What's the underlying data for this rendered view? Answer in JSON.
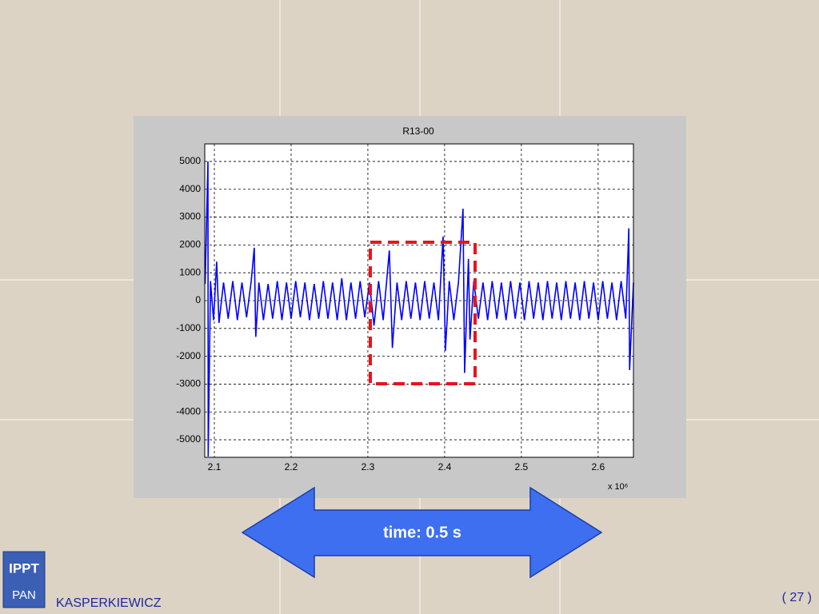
{
  "chart_data": {
    "type": "line",
    "title": "R13-00",
    "x_multiplier": "x 10⁶",
    "xlim": [
      2.0875,
      2.646
    ],
    "ylim": [
      -5630,
      5630
    ],
    "xticks": [
      2.1,
      2.2,
      2.3,
      2.4,
      2.5,
      2.6
    ],
    "yticks": [
      -5000,
      -4000,
      -3000,
      -2000,
      -1000,
      0,
      1000,
      2000,
      3000,
      4000,
      5000
    ],
    "grid": true,
    "series": [
      {
        "color": "#0000ff",
        "x": [
          2.088,
          2.0917,
          2.092,
          2.095,
          2.099,
          2.103,
          2.106,
          2.112,
          2.118,
          2.124,
          2.13,
          2.136,
          2.142,
          2.148,
          2.152,
          2.154,
          2.158,
          2.164,
          2.17,
          2.176,
          2.182,
          2.188,
          2.194,
          2.2,
          2.206,
          2.212,
          2.218,
          2.224,
          2.23,
          2.236,
          2.242,
          2.248,
          2.254,
          2.26,
          2.266,
          2.272,
          2.278,
          2.284,
          2.29,
          2.296,
          2.302,
          2.308,
          2.314,
          2.32,
          2.328,
          2.332,
          2.338,
          2.344,
          2.35,
          2.356,
          2.362,
          2.368,
          2.374,
          2.38,
          2.386,
          2.392,
          2.398,
          2.401,
          2.406,
          2.412,
          2.418,
          2.424,
          2.426,
          2.431,
          2.433,
          2.438,
          2.444,
          2.45,
          2.456,
          2.462,
          2.468,
          2.474,
          2.48,
          2.486,
          2.492,
          2.498,
          2.504,
          2.51,
          2.516,
          2.522,
          2.528,
          2.534,
          2.54,
          2.546,
          2.552,
          2.558,
          2.564,
          2.57,
          2.576,
          2.582,
          2.588,
          2.594,
          2.6,
          2.606,
          2.612,
          2.618,
          2.624,
          2.63,
          2.636,
          2.64,
          2.641,
          2.646
        ],
        "values": [
          600,
          5000,
          -5600,
          700,
          -700,
          1400,
          -800,
          650,
          -650,
          700,
          -700,
          650,
          -600,
          700,
          1900,
          -1300,
          650,
          -700,
          600,
          -650,
          700,
          -700,
          650,
          -650,
          700,
          -600,
          650,
          -700,
          600,
          -650,
          700,
          -650,
          650,
          -700,
          800,
          -700,
          650,
          -650,
          700,
          -600,
          650,
          -900,
          700,
          -700,
          1800,
          -1700,
          650,
          -700,
          700,
          -650,
          650,
          -700,
          700,
          -650,
          650,
          -700,
          2300,
          -1800,
          700,
          -700,
          650,
          3300,
          -2600,
          1500,
          -1400,
          700,
          -650,
          650,
          -700,
          700,
          -650,
          650,
          -700,
          700,
          -650,
          650,
          -700,
          700,
          -650,
          650,
          -700,
          700,
          -650,
          650,
          -700,
          700,
          -650,
          650,
          -700,
          700,
          -650,
          650,
          -700,
          700,
          -650,
          650,
          -700,
          700,
          -650,
          2600,
          -2500,
          650
        ]
      }
    ]
  },
  "slide": {
    "arrow_label": "time: 0.5 s",
    "author": "KASPERKIEWICZ",
    "page": "( 27 )",
    "logo_top": "IPPT",
    "logo_bottom": "PAN"
  }
}
